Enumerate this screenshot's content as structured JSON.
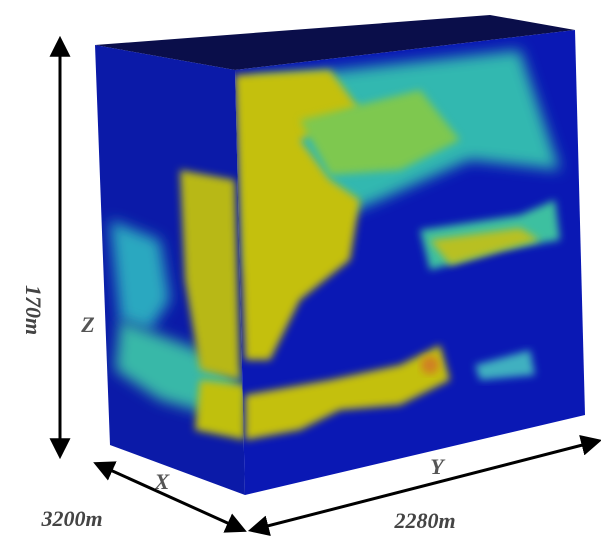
{
  "labels": {
    "height": "170m",
    "z_axis": "Z",
    "x_axis": "X",
    "x_length": "3200m",
    "y_axis": "Y",
    "y_length": "2280m"
  }
}
